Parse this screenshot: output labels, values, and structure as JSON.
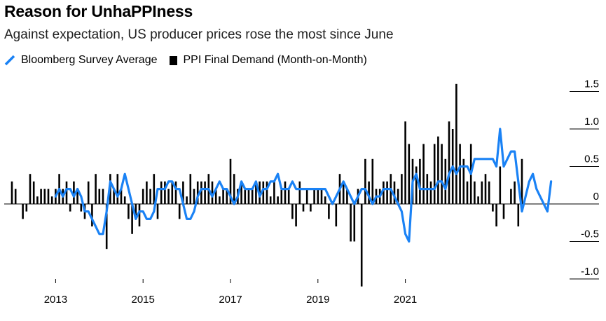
{
  "title": "Reason for UnhaPPIness",
  "subtitle": "Against expectation, US producer prices rose the most since June",
  "legend": {
    "survey_label": "Bloomberg Survey Average",
    "ppi_label": "PPI Final Demand (Month-on-Month)"
  },
  "colors": {
    "survey": "#1a82f5",
    "ppi": "#000000"
  },
  "icons": {
    "survey_swatch": "diagonal-line-icon",
    "ppi_swatch": "square-icon"
  },
  "chart_data": {
    "type": "bar",
    "title": "Reason for UnhaPPIness",
    "subtitle": "Against expectation, US producer prices rose the most since June",
    "x_start": "2012-01",
    "ylim": [
      -1.15,
      1.65
    ],
    "yticks": [
      1.5,
      1.0,
      0.5,
      0,
      -0.5,
      -1.0
    ],
    "ytick_labels": [
      "1.5",
      "1.0",
      "0.5",
      "0",
      "-0.5",
      "-1.0"
    ],
    "xtick_labels": [
      "2013",
      "2015",
      "2017",
      "2019",
      "2021"
    ],
    "xtick_months": [
      "2013-01",
      "2015-01",
      "2017-01",
      "2019-01",
      "2021-01"
    ],
    "grid": false,
    "series": [
      {
        "name": "PPI Final Demand (Month-on-Month)",
        "type": "bar",
        "values": [
          0.3,
          0.2,
          0.0,
          -0.2,
          -0.1,
          0.4,
          0.3,
          0.1,
          0.2,
          0.2,
          0.2,
          0.1,
          0.2,
          0.4,
          0.2,
          0.3,
          -0.1,
          0.3,
          0.2,
          -0.1,
          -0.2,
          0.3,
          -0.3,
          0.4,
          0.2,
          0.2,
          -0.6,
          0.4,
          0.2,
          0.4,
          0.2,
          0.1,
          -0.2,
          -0.4,
          -0.2,
          -0.3,
          0.2,
          0.3,
          0.2,
          0.4,
          -0.2,
          0.3,
          0.3,
          0.2,
          0.3,
          0.3,
          -0.2,
          0.3,
          0.1,
          0.4,
          0.2,
          0.3,
          0.3,
          0.3,
          0.4,
          0.3,
          0.2,
          0.1,
          0.2,
          0.2,
          0.6,
          0.4,
          0.2,
          0.3,
          0.2,
          0.2,
          0.2,
          0.3,
          0.3,
          0.3,
          0.3,
          0.1,
          0.3,
          0.1,
          0.2,
          0.3,
          0.2,
          -0.2,
          -0.3,
          0.3,
          -0.1,
          0.2,
          -0.1,
          0.2,
          0.2,
          0.2,
          0.1,
          -0.2,
          0.0,
          -0.3,
          0.4,
          0.3,
          0.2,
          -0.5,
          -0.5,
          0.2,
          -1.1,
          0.6,
          0.3,
          0.6,
          0.2,
          0.2,
          0.3,
          0.3,
          0.4,
          0.3,
          0.2,
          0.4,
          1.1,
          0.8,
          0.6,
          0.5,
          0.6,
          0.8,
          0.4,
          0.3,
          0.8,
          0.9,
          0.8,
          0.6,
          1.1,
          1.0,
          1.6,
          0.8,
          0.6,
          0.3,
          0.8,
          0.3,
          0.1,
          0.3,
          0.4,
          0.3
        ],
        "post_values": [
          -0.1,
          -0.3,
          0.5,
          -0.2,
          0.0,
          0.2,
          0.3,
          -0.3,
          0.6
        ]
      },
      {
        "name": "Bloomberg Survey Average",
        "type": "line",
        "values": [
          0.1,
          0.2,
          0.1,
          0.2,
          0.2,
          0.1,
          0.2,
          0.1,
          -0.1,
          -0.1,
          -0.2,
          -0.3,
          -0.4,
          -0.4,
          -0.1,
          0.3,
          0.2,
          0.1,
          0.2,
          0.4,
          0.2,
          0.0,
          -0.2,
          -0.1,
          -0.1,
          -0.2,
          -0.2,
          -0.1,
          0.2,
          0.2,
          0.2,
          0.3,
          0.3,
          0.2,
          0.2,
          0.0,
          -0.2,
          -0.2,
          -0.1,
          0.1,
          0.2,
          0.2,
          0.2,
          0.1,
          0.2,
          0.3,
          0.2,
          0.2,
          0.1,
          0.0,
          0.1,
          0.3,
          0.2,
          0.2,
          0.2,
          0.3,
          0.1,
          0.2,
          0.2,
          0.3,
          0.3,
          0.4,
          0.2,
          0.2,
          0.2,
          0.3,
          0.2,
          0.2,
          0.2,
          0.2,
          0.2,
          0.2,
          0.2,
          0.2,
          0.2,
          0.1,
          0.0,
          0.1,
          0.2,
          0.3,
          0.2,
          0.1,
          0.0,
          0.1,
          0.2,
          0.2,
          0.1,
          0.0,
          0.1,
          0.1,
          0.2,
          0.2,
          0.2,
          0.1,
          0.0,
          -0.1,
          -0.4,
          -0.5,
          0.3,
          0.4,
          0.2,
          0.2,
          0.2,
          0.2,
          0.2,
          0.3,
          0.3,
          0.2,
          0.4,
          0.5,
          0.4,
          0.5,
          0.5,
          0.5,
          0.4,
          0.6,
          0.6,
          0.6,
          0.6,
          0.6,
          0.6,
          0.5,
          1.0,
          0.5,
          0.6,
          0.7,
          0.7,
          0.3,
          -0.1,
          0.1,
          0.3,
          0.4
        ],
        "post_values": [
          0.2,
          0.1,
          0.0,
          -0.1,
          0.3
        ]
      }
    ]
  }
}
